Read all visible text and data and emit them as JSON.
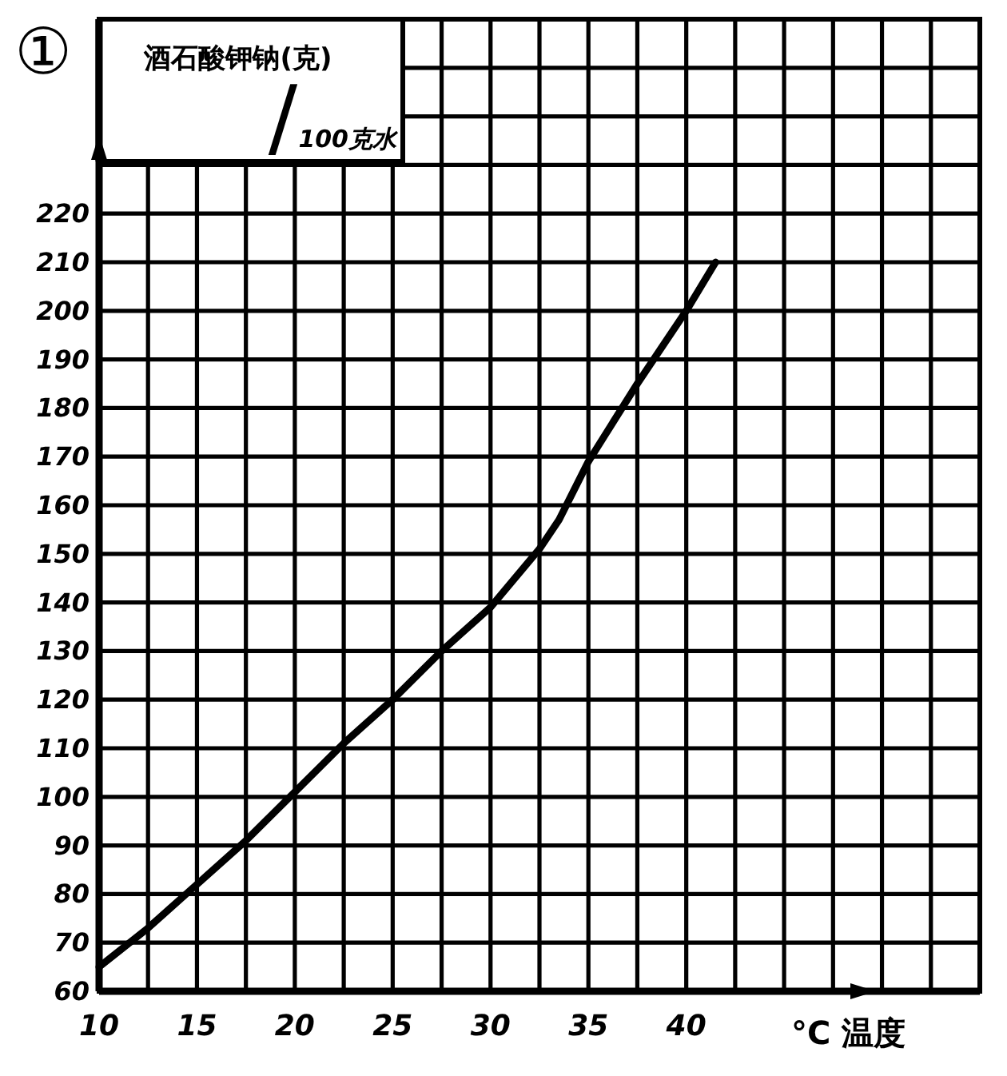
{
  "chart_data": {
    "type": "line",
    "ylabel": "酒石酸钾钠(克)/100克水",
    "xlabel": "°C 温度",
    "annotations": [
      "①"
    ],
    "x": [
      10,
      12.5,
      15,
      17.5,
      20,
      22.5,
      25,
      27.5,
      30,
      32.5,
      33.5,
      35,
      37.5,
      40,
      41.5
    ],
    "values": [
      65,
      73,
      82,
      91,
      101,
      111,
      120,
      130,
      139,
      151,
      157,
      169,
      185,
      200,
      210
    ],
    "color": "#000000",
    "xlim": [
      10,
      55
    ],
    "ylim": [
      60,
      260
    ],
    "xticks": [
      10,
      {
        "value": 12.5,
        "label": null
      },
      15,
      {
        "value": 17.5,
        "label": null
      },
      20,
      {
        "value": 22.5,
        "label": null
      },
      25,
      {
        "value": 27.5,
        "label": null
      },
      30,
      {
        "value": 32.5,
        "label": null
      },
      35,
      {
        "value": 37.5,
        "label": null
      },
      40,
      {
        "value": 42.5,
        "label": null
      },
      {
        "value": 45,
        "label": null
      },
      {
        "value": 47.5,
        "label": null
      },
      {
        "value": 50,
        "label": null
      },
      {
        "value": 52.5,
        "label": null
      }
    ],
    "yticks": [
      60,
      70,
      80,
      90,
      100,
      110,
      120,
      130,
      140,
      150,
      160,
      170,
      180,
      190,
      200,
      210,
      220,
      {
        "value": 230,
        "label": null
      },
      {
        "value": 240,
        "label": null
      },
      {
        "value": 250,
        "label": null
      }
    ],
    "grid": true
  }
}
